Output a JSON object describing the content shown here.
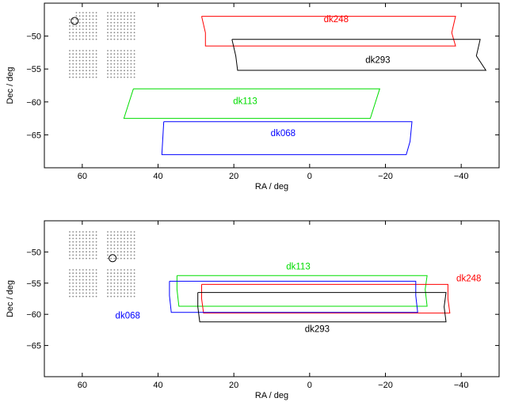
{
  "chart_data": [
    {
      "type": "line",
      "panel": "top",
      "xlabel": "RA / deg",
      "ylabel": "Dec / deg",
      "xlim": [
        70,
        -50
      ],
      "ylim": [
        -70,
        -45
      ],
      "x_ticks": [
        60,
        40,
        20,
        0,
        -20,
        -40
      ],
      "y_ticks": [
        -50,
        -55,
        -60,
        -65
      ],
      "x_tick_labels": [
        "60",
        "40",
        "20",
        "0",
        "−20",
        "−40"
      ],
      "y_tick_labels": [
        "−50",
        "−55",
        "−60",
        "−65"
      ],
      "grid": false,
      "series": [
        {
          "name": "dk248",
          "color": "#ff0000",
          "label_at": [
            -7,
            -47.9
          ],
          "outline": [
            [
              28.5,
              -47
            ],
            [
              -38.5,
              -47
            ],
            [
              -37.5,
              -49.5
            ],
            [
              -38.5,
              -51.5
            ],
            [
              27.5,
              -51.5
            ],
            [
              27.5,
              -49.5
            ],
            [
              28.5,
              -47
            ]
          ]
        },
        {
          "name": "dk293",
          "color": "#000000",
          "label_at": [
            -18,
            -54.1
          ],
          "outline": [
            [
              20.5,
              -50.5
            ],
            [
              -45,
              -50.5
            ],
            [
              -44,
              -53
            ],
            [
              -46.5,
              -55.2
            ],
            [
              19,
              -55.2
            ],
            [
              19.5,
              -53
            ],
            [
              20.5,
              -50.5
            ]
          ]
        },
        {
          "name": "dk113",
          "color": "#00dd00",
          "label_at": [
            17,
            -60.3
          ],
          "outline": [
            [
              46.5,
              -58
            ],
            [
              -18.5,
              -58
            ],
            [
              -16,
              -62.5
            ],
            [
              49,
              -62.5
            ],
            [
              46.5,
              -58
            ]
          ]
        },
        {
          "name": "dk068",
          "color": "#0000ff",
          "label_at": [
            7,
            -65.2
          ],
          "outline": [
            [
              38.5,
              -63
            ],
            [
              -27,
              -63
            ],
            [
              -26.5,
              -66
            ],
            [
              -25.5,
              -68
            ],
            [
              39,
              -68
            ],
            [
              38.5,
              -63
            ]
          ]
        }
      ],
      "dot_grid_origin": [
        62,
        -47.7
      ]
    },
    {
      "type": "line",
      "panel": "bottom",
      "xlabel": "RA / deg",
      "ylabel": "Dec / deg",
      "xlim": [
        70,
        -50
      ],
      "ylim": [
        -70,
        -45
      ],
      "x_ticks": [
        60,
        40,
        20,
        0,
        -20,
        -40
      ],
      "y_ticks": [
        -50,
        -55,
        -60,
        -65
      ],
      "x_tick_labels": [
        "60",
        "40",
        "20",
        "0",
        "−20",
        "−40"
      ],
      "y_tick_labels": [
        "−50",
        "−55",
        "−60",
        "−65"
      ],
      "grid": false,
      "series": [
        {
          "name": "dk113",
          "color": "#00dd00",
          "label_at": [
            3,
            -52.8
          ],
          "outline": [
            [
              35,
              -53.8
            ],
            [
              -31,
              -53.8
            ],
            [
              -30.5,
              -56
            ],
            [
              -31,
              -58.7
            ],
            [
              34.5,
              -58.7
            ],
            [
              35,
              -56
            ],
            [
              35,
              -53.8
            ]
          ]
        },
        {
          "name": "dk248",
          "color": "#ff0000",
          "label_at": [
            -42,
            -54.7
          ],
          "outline": [
            [
              28.5,
              -55.2
            ],
            [
              -36.5,
              -55.2
            ],
            [
              -36.5,
              -57.5
            ],
            [
              -37,
              -59.8
            ],
            [
              28,
              -59.8
            ],
            [
              28.5,
              -57.5
            ],
            [
              28.5,
              -55.2
            ]
          ]
        },
        {
          "name": "dk068",
          "color": "#0000ff",
          "label_at": [
            48,
            -60.7
          ],
          "outline": [
            [
              37,
              -54.7
            ],
            [
              -28,
              -54.7
            ],
            [
              -28,
              -57
            ],
            [
              -28.5,
              -59.7
            ],
            [
              36.5,
              -59.7
            ],
            [
              37,
              -57
            ],
            [
              37,
              -54.7
            ]
          ]
        },
        {
          "name": "dk293",
          "color": "#000000",
          "label_at": [
            -2,
            -62.8
          ],
          "outline": [
            [
              29.5,
              -56.5
            ],
            [
              -36,
              -56.5
            ],
            [
              -35.5,
              -58.8
            ],
            [
              -36,
              -61.2
            ],
            [
              29,
              -61.2
            ],
            [
              29.5,
              -58.8
            ],
            [
              29.5,
              -56.5
            ]
          ]
        }
      ],
      "dot_grid_origin": [
        52,
        -51
      ]
    }
  ]
}
